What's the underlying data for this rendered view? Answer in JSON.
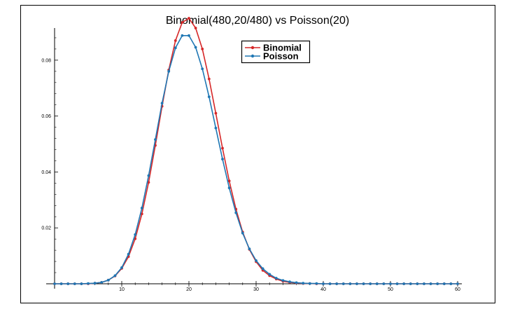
{
  "chart_data": {
    "type": "line",
    "title": "Binomial(480,20/480) vs Poisson(20)",
    "xlabel": "",
    "ylabel": "",
    "xlim": [
      0,
      60
    ],
    "ylim": [
      0,
      0.092
    ],
    "x_ticks": [
      10,
      20,
      30,
      40,
      50,
      60
    ],
    "y_ticks": [
      0.02,
      0.04,
      0.06,
      0.08
    ],
    "x_tick_labels": [
      "10",
      "20",
      "30",
      "40",
      "50",
      "60"
    ],
    "y_tick_labels": [
      "0.02",
      "0.04",
      "0.06",
      "0.08"
    ],
    "grid": false,
    "legend_position": "top-right",
    "x": [
      0,
      1,
      2,
      3,
      4,
      5,
      6,
      7,
      8,
      9,
      10,
      11,
      12,
      13,
      14,
      15,
      16,
      17,
      18,
      19,
      20,
      21,
      22,
      23,
      24,
      25,
      26,
      27,
      28,
      29,
      30,
      31,
      32,
      33,
      34,
      35,
      36,
      37,
      38,
      39,
      40,
      41,
      42,
      43,
      44,
      45,
      46,
      47,
      48,
      49,
      50,
      51,
      52,
      53,
      54,
      55,
      56,
      57,
      58,
      59,
      60
    ],
    "series": [
      {
        "name": "Binomial",
        "color": "#d62728",
        "marker_color": "#d62728",
        "values": [
          0.0,
          0.0,
          0.0,
          0.0,
          0.0,
          0.0,
          0.0002,
          0.0005,
          0.0013,
          0.0028,
          0.0055,
          0.0097,
          0.0161,
          0.025,
          0.0363,
          0.0495,
          0.0635,
          0.0765,
          0.087,
          0.0935,
          0.095,
          0.0915,
          0.084,
          0.0733,
          0.061,
          0.0485,
          0.0368,
          0.0267,
          0.0185,
          0.0123,
          0.0079,
          0.0048,
          0.0029,
          0.0017,
          0.0009,
          0.0005,
          0.0003,
          0.0001,
          0.0001,
          0.0,
          0.0,
          0.0,
          0.0,
          0.0,
          0.0,
          0.0,
          0.0,
          0.0,
          0.0,
          0.0,
          0.0,
          0.0,
          0.0,
          0.0,
          0.0,
          0.0,
          0.0,
          0.0,
          0.0,
          0.0,
          0.0
        ]
      },
      {
        "name": "Poisson",
        "color": "#1f77b4",
        "marker_color": "#1f77b4",
        "values": [
          0.0,
          0.0,
          0.0,
          0.0,
          0.0,
          0.0001,
          0.0002,
          0.0005,
          0.0013,
          0.0029,
          0.0058,
          0.0106,
          0.0176,
          0.0271,
          0.0387,
          0.0516,
          0.0646,
          0.076,
          0.0844,
          0.0888,
          0.0888,
          0.0846,
          0.0769,
          0.0669,
          0.0557,
          0.0446,
          0.0343,
          0.0254,
          0.0181,
          0.0125,
          0.0083,
          0.0054,
          0.0034,
          0.002,
          0.0012,
          0.0007,
          0.0004,
          0.0002,
          0.0001,
          0.0001,
          0.0,
          0.0,
          0.0,
          0.0,
          0.0,
          0.0,
          0.0,
          0.0,
          0.0,
          0.0,
          0.0,
          0.0,
          0.0,
          0.0,
          0.0,
          0.0,
          0.0,
          0.0,
          0.0,
          0.0,
          0.0
        ]
      }
    ]
  }
}
